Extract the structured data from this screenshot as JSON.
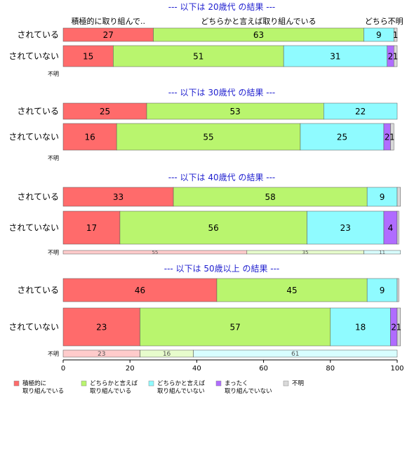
{
  "chart_data": {
    "type": "bar",
    "orientation": "horizontal",
    "stacked": true,
    "normalized": true,
    "xlim": [
      0,
      100
    ],
    "xticks": [
      0,
      20,
      40,
      60,
      80,
      100
    ],
    "category_colors": [
      "#ff6b6b",
      "#b9f56e",
      "#8ffbff",
      "#b06cff",
      "#d9d9d9"
    ],
    "legend": {
      "placement": "bottom",
      "items": [
        {
          "line1": "積極的に",
          "line2": "取り組んでいる"
        },
        {
          "line1": "どちらかと言えば",
          "line2": "取り組んでいる"
        },
        {
          "line1": "どちらかと言えば",
          "line2": "取り組んでいない"
        },
        {
          "line1": "まったく",
          "line2": "取り組んでいない"
        },
        {
          "line1": "不明",
          "line2": ""
        }
      ]
    },
    "header_labels": [
      {
        "text": "積極的に取り組んで..",
        "x": 13.5
      },
      {
        "text": "どちらかと言えば取り組んでいる",
        "x": 58.5
      },
      {
        "text": "どちら..",
        "x": 94.5
      },
      {
        "text": "不明",
        "x": 99.5
      }
    ],
    "groups": [
      {
        "title": "--- 以下は 20歳代 の結果 ---",
        "rows": [
          {
            "label": "されている",
            "values": [
              27,
              63,
              9,
              0,
              1
            ],
            "labels": [
              "27",
              "63",
              "9",
              "",
              "1"
            ]
          },
          {
            "label": "されていない",
            "values": [
              15,
              51,
              31,
              2,
              1
            ],
            "labels": [
              "15",
              "51",
              "31",
              "2",
              "1"
            ]
          },
          {
            "label": "不明",
            "values": [],
            "labels": []
          }
        ]
      },
      {
        "title": "--- 以下は 30歳代 の結果 ---",
        "rows": [
          {
            "label": "されている",
            "values": [
              25,
              53,
              22,
              0,
              0
            ],
            "labels": [
              "25",
              "53",
              "22",
              "",
              ""
            ]
          },
          {
            "label": "されていない",
            "values": [
              16,
              55,
              25,
              2,
              1
            ],
            "labels": [
              "16",
              "55",
              "25",
              "2",
              "1"
            ]
          },
          {
            "label": "不明",
            "values": [],
            "labels": []
          }
        ]
      },
      {
        "title": "--- 以下は 40歳代 の結果 ---",
        "rows": [
          {
            "label": "されている",
            "values": [
              33,
              58,
              9,
              0,
              1
            ],
            "labels": [
              "33",
              "58",
              "9",
              "",
              ""
            ]
          },
          {
            "label": "されていない",
            "values": [
              17,
              56,
              23,
              4,
              0.5
            ],
            "labels": [
              "17",
              "56",
              "23",
              "4",
              ""
            ]
          },
          {
            "label": "不明",
            "values": [
              55,
              35,
              11,
              0,
              0
            ],
            "labels": [
              "55",
              "35",
              "11",
              "",
              ""
            ]
          }
        ]
      },
      {
        "title": "--- 以下は 50歳以上 の結果 ---",
        "rows": [
          {
            "label": "されている",
            "values": [
              46,
              45,
              9,
              0,
              0.5
            ],
            "labels": [
              "46",
              "45",
              "9",
              "",
              ""
            ]
          },
          {
            "label": "されていない",
            "values": [
              23,
              57,
              18,
              2,
              1
            ],
            "labels": [
              "23",
              "57",
              "18",
              "2",
              "1"
            ]
          },
          {
            "label": "不明",
            "values": [
              23,
              16,
              61,
              0,
              0
            ],
            "labels": [
              "23",
              "16",
              "61",
              "",
              ""
            ]
          }
        ]
      }
    ]
  }
}
